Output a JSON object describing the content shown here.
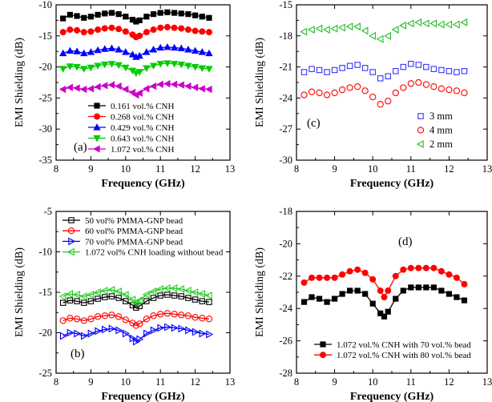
{
  "chart_data": [
    {
      "id": "a",
      "type": "line",
      "panel_label": "(a)",
      "xlabel": "Frequency (GHz)",
      "ylabel": "EMI Shielding (dB)",
      "xlim": [
        8,
        13
      ],
      "ylim": [
        -35,
        -10
      ],
      "xticks": [
        8,
        9,
        10,
        11,
        12,
        13
      ],
      "yticks": [
        -35,
        -30,
        -25,
        -20,
        -15,
        -10
      ],
      "legend_position": "lower-left",
      "x": [
        8.2,
        8.4,
        8.6,
        8.8,
        9.0,
        9.2,
        9.4,
        9.6,
        9.8,
        10.0,
        10.2,
        10.3,
        10.4,
        10.6,
        10.8,
        11.0,
        11.2,
        11.4,
        11.6,
        11.8,
        12.0,
        12.2,
        12.4
      ],
      "series": [
        {
          "name": "0.161 vol.% CNH",
          "marker": "square",
          "color": "#000000",
          "values": [
            -12.2,
            -11.6,
            -11.8,
            -12.1,
            -11.9,
            -11.6,
            -11.4,
            -11.3,
            -11.5,
            -11.9,
            -12.4,
            -12.7,
            -12.5,
            -11.9,
            -11.5,
            -11.3,
            -11.2,
            -11.3,
            -11.4,
            -11.5,
            -11.7,
            -11.9,
            -12.1
          ]
        },
        {
          "name": "0.268 vol.% CNH",
          "marker": "circle",
          "color": "#ff0000",
          "values": [
            -14.4,
            -14.0,
            -14.1,
            -14.4,
            -14.3,
            -14.0,
            -13.8,
            -13.7,
            -13.9,
            -14.3,
            -14.8,
            -15.2,
            -15.0,
            -14.4,
            -14.0,
            -13.7,
            -13.6,
            -13.7,
            -13.8,
            -14.0,
            -14.2,
            -14.3,
            -14.4
          ]
        },
        {
          "name": "0.429 vol.% CNH",
          "marker": "triangle-up",
          "color": "#0000ff",
          "values": [
            -17.8,
            -17.4,
            -17.5,
            -17.8,
            -17.6,
            -17.3,
            -17.1,
            -17.0,
            -17.2,
            -17.6,
            -18.0,
            -18.4,
            -18.2,
            -17.6,
            -17.2,
            -16.9,
            -16.8,
            -16.9,
            -17.0,
            -17.2,
            -17.4,
            -17.6,
            -17.8
          ]
        },
        {
          "name": "0.643 vol.% CNH",
          "marker": "triangle-down",
          "color": "#00cc00",
          "values": [
            -20.3,
            -19.9,
            -20.0,
            -20.3,
            -20.1,
            -19.8,
            -19.6,
            -19.5,
            -19.7,
            -20.1,
            -20.6,
            -21.0,
            -20.8,
            -20.2,
            -19.8,
            -19.5,
            -19.4,
            -19.5,
            -19.6,
            -19.8,
            -20.0,
            -20.2,
            -20.3
          ]
        },
        {
          "name": "1.072 vol.% CNH",
          "marker": "triangle-left",
          "color": "#cc00cc",
          "values": [
            -23.6,
            -23.3,
            -23.4,
            -23.6,
            -23.5,
            -23.2,
            -23.0,
            -22.9,
            -23.1,
            -23.6,
            -24.1,
            -24.5,
            -24.2,
            -23.5,
            -23.1,
            -22.8,
            -22.7,
            -22.8,
            -22.9,
            -23.1,
            -23.3,
            -23.5,
            -23.6
          ]
        }
      ]
    },
    {
      "id": "c",
      "type": "scatter",
      "panel_label": "(c)",
      "xlabel": "Frequency (GHz)",
      "ylabel": "EMI Shielding (dB)",
      "xlim": [
        8,
        13
      ],
      "ylim": [
        -30,
        -15
      ],
      "xticks": [
        8,
        9,
        10,
        11,
        12,
        13
      ],
      "yticks": [
        -30,
        -27,
        -24,
        -21,
        -18,
        -15
      ],
      "legend_position": "lower-right",
      "x": [
        8.2,
        8.4,
        8.6,
        8.8,
        9.0,
        9.2,
        9.4,
        9.6,
        9.8,
        10.0,
        10.2,
        10.4,
        10.6,
        10.8,
        11.0,
        11.2,
        11.4,
        11.6,
        11.8,
        12.0,
        12.2,
        12.4
      ],
      "series": [
        {
          "name": "3 mm",
          "marker": "square-open",
          "color": "#3333ff",
          "values": [
            -21.5,
            -21.2,
            -21.3,
            -21.5,
            -21.3,
            -21.1,
            -20.9,
            -20.8,
            -21.1,
            -21.5,
            -22.1,
            -21.9,
            -21.4,
            -21.0,
            -20.7,
            -20.8,
            -21.0,
            -21.2,
            -21.3,
            -21.4,
            -21.5,
            -21.4
          ]
        },
        {
          "name": "4 mm",
          "marker": "circle-open",
          "color": "#ff0000",
          "values": [
            -23.7,
            -23.4,
            -23.5,
            -23.7,
            -23.5,
            -23.2,
            -23.0,
            -22.9,
            -23.3,
            -23.9,
            -24.6,
            -24.3,
            -23.5,
            -23.0,
            -22.6,
            -22.5,
            -22.7,
            -22.9,
            -23.1,
            -23.2,
            -23.3,
            -23.5
          ]
        },
        {
          "name": "2 mm",
          "marker": "triangle-left-open",
          "color": "#22bb22",
          "values": [
            -17.6,
            -17.4,
            -17.3,
            -17.4,
            -17.3,
            -17.2,
            -17.1,
            -17.1,
            -17.5,
            -18.0,
            -18.3,
            -18.0,
            -17.4,
            -17.0,
            -16.8,
            -16.7,
            -16.8,
            -16.8,
            -16.9,
            -16.9,
            -16.9,
            -16.7
          ]
        }
      ]
    },
    {
      "id": "b",
      "type": "line",
      "panel_label": "(b)",
      "xlabel": "Frequency (GHz)",
      "ylabel": "EMI Shielding (dB)",
      "xlim": [
        8,
        13
      ],
      "ylim": [
        -25,
        -5
      ],
      "xticks": [
        8,
        9,
        10,
        11,
        12,
        13
      ],
      "yticks": [
        -25,
        -20,
        -15,
        -10,
        -5
      ],
      "legend_position": "top-left",
      "x": [
        8.2,
        8.4,
        8.6,
        8.8,
        9.0,
        9.2,
        9.4,
        9.6,
        9.8,
        10.0,
        10.2,
        10.3,
        10.4,
        10.6,
        10.8,
        11.0,
        11.2,
        11.4,
        11.6,
        11.8,
        12.0,
        12.2,
        12.4
      ],
      "series": [
        {
          "name": "50 vol% PMMA-GNP bead",
          "marker": "square-open",
          "color": "#000000",
          "values": [
            -16.3,
            -16.0,
            -16.1,
            -16.3,
            -16.1,
            -15.8,
            -15.6,
            -15.5,
            -15.7,
            -16.1,
            -16.6,
            -16.9,
            -16.7,
            -16.1,
            -15.7,
            -15.4,
            -15.3,
            -15.4,
            -15.5,
            -15.7,
            -15.9,
            -16.1,
            -16.2
          ]
        },
        {
          "name": "60 vol% PMMA-GNP bead",
          "marker": "circle-open",
          "color": "#ff0000",
          "values": [
            -18.5,
            -18.2,
            -18.3,
            -18.5,
            -18.3,
            -18.0,
            -17.9,
            -17.8,
            -18.0,
            -18.4,
            -18.8,
            -19.1,
            -18.9,
            -18.3,
            -17.9,
            -17.7,
            -17.6,
            -17.7,
            -17.8,
            -17.9,
            -18.1,
            -18.2,
            -18.3
          ]
        },
        {
          "name": "70 vol% PMMA-GNP bead",
          "marker": "triangle-right-open",
          "color": "#0000ff",
          "values": [
            -20.4,
            -20.0,
            -20.1,
            -20.4,
            -20.1,
            -19.8,
            -19.6,
            -19.5,
            -19.7,
            -20.1,
            -20.7,
            -21.1,
            -20.8,
            -20.1,
            -19.7,
            -19.4,
            -19.3,
            -19.4,
            -19.5,
            -19.7,
            -19.9,
            -20.1,
            -20.2
          ]
        },
        {
          "name": "1.072 vol% CNH loading without bead",
          "marker": "triangle-left-open",
          "color": "#22cc22",
          "values": [
            -15.5,
            -15.2,
            -15.3,
            -15.5,
            -15.3,
            -15.0,
            -14.8,
            -14.7,
            -14.9,
            -15.3,
            -15.9,
            -16.3,
            -16.0,
            -15.3,
            -14.9,
            -14.6,
            -14.5,
            -14.5,
            -14.6,
            -14.8,
            -15.0,
            -15.2,
            -15.4
          ]
        }
      ]
    },
    {
      "id": "d",
      "type": "line",
      "panel_label": "(d)",
      "xlabel": "Frequency (GHz)",
      "ylabel": "EMI Shielding (dB)",
      "xlim": [
        8,
        13
      ],
      "ylim": [
        -28,
        -18
      ],
      "xticks": [
        8,
        9,
        10,
        11,
        12,
        13
      ],
      "yticks": [
        -28,
        -26,
        -24,
        -22,
        -20,
        -18
      ],
      "legend_position": "bottom",
      "x": [
        8.2,
        8.4,
        8.6,
        8.8,
        9.0,
        9.2,
        9.4,
        9.6,
        9.8,
        10.0,
        10.2,
        10.3,
        10.4,
        10.6,
        10.8,
        11.0,
        11.2,
        11.4,
        11.6,
        11.8,
        12.0,
        12.2,
        12.4
      ],
      "series": [
        {
          "name": "1.072 vol.% CNH with 70 vol.% bead",
          "marker": "square",
          "color": "#000000",
          "values": [
            -23.6,
            -23.3,
            -23.4,
            -23.6,
            -23.4,
            -23.1,
            -22.9,
            -22.9,
            -23.1,
            -23.7,
            -24.3,
            -24.5,
            -24.2,
            -23.4,
            -22.9,
            -22.7,
            -22.7,
            -22.7,
            -22.7,
            -22.9,
            -23.1,
            -23.3,
            -23.5
          ]
        },
        {
          "name": "1.072 vol.% CNH with 80 vol.% bead",
          "marker": "circle",
          "color": "#ff0000",
          "values": [
            -22.4,
            -22.1,
            -22.1,
            -22.1,
            -22.1,
            -21.9,
            -21.7,
            -21.6,
            -21.8,
            -22.2,
            -22.9,
            -23.3,
            -22.9,
            -22.0,
            -21.6,
            -21.5,
            -21.5,
            -21.5,
            -21.5,
            -21.7,
            -21.9,
            -22.1,
            -22.5
          ]
        }
      ]
    }
  ]
}
